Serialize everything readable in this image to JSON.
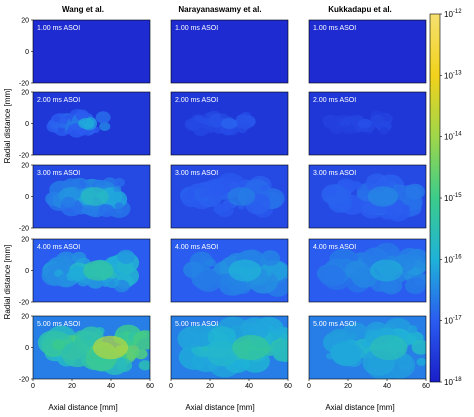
{
  "chart_data": {
    "type": "heatmap",
    "columns": [
      "Wang et al.",
      "Narayanaswamy et al.",
      "Kukkadapu et al."
    ],
    "rows": [
      "1.00 ms ASOI",
      "2.00 ms ASOI",
      "3.00 ms ASOI",
      "4.00 ms ASOI",
      "5.00 ms ASOI"
    ],
    "xlabel": "Axial distance [mm]",
    "ylabel": "Radial distance [mm]",
    "xlim": [
      0,
      60
    ],
    "ylim": [
      -20,
      20
    ],
    "x_ticks": [
      "0",
      "20",
      "40",
      "60"
    ],
    "y_ticks": [
      "20",
      "0",
      "-20"
    ],
    "colorbar": {
      "scale": "log",
      "min_exponent": -18,
      "max_exponent": -12,
      "ticks": [
        {
          "base": "10",
          "exp": "-12",
          "value": -12
        },
        {
          "base": "10",
          "exp": "-13",
          "value": -13
        },
        {
          "base": "10",
          "exp": "-14",
          "value": -14
        },
        {
          "base": "10",
          "exp": "-15",
          "value": -15
        },
        {
          "base": "10",
          "exp": "-16",
          "value": -16
        },
        {
          "base": "10",
          "exp": "-17",
          "value": -17
        },
        {
          "base": "10",
          "exp": "-18",
          "value": -18
        }
      ],
      "colors": [
        "#1a1fc8",
        "#2a5cf0",
        "#1fb2d8",
        "#3ccc8a",
        "#9fd64a",
        "#f2d21c",
        "#f5e070"
      ]
    },
    "panels": [
      {
        "row": 0,
        "col": 0,
        "background": -17.8,
        "x_reach": 0,
        "width": 0,
        "peak": -17.8
      },
      {
        "row": 0,
        "col": 1,
        "background": -17.8,
        "x_reach": 0,
        "width": 0,
        "peak": -17.8
      },
      {
        "row": 0,
        "col": 2,
        "background": -17.8,
        "x_reach": 0,
        "width": 0,
        "peak": -17.8
      },
      {
        "row": 1,
        "col": 0,
        "background": -17.6,
        "x_reach": 38,
        "width": 7,
        "peak": -16.0
      },
      {
        "row": 1,
        "col": 1,
        "background": -17.6,
        "x_reach": 42,
        "width": 7,
        "peak": -16.9
      },
      {
        "row": 1,
        "col": 2,
        "background": -17.6,
        "x_reach": 40,
        "width": 6,
        "peak": -17.2
      },
      {
        "row": 2,
        "col": 0,
        "background": -17.3,
        "x_reach": 45,
        "width": 12,
        "peak": -15.7
      },
      {
        "row": 2,
        "col": 1,
        "background": -17.3,
        "x_reach": 52,
        "width": 12,
        "peak": -16.6
      },
      {
        "row": 2,
        "col": 2,
        "background": -17.3,
        "x_reach": 55,
        "width": 13,
        "peak": -16.5
      },
      {
        "row": 3,
        "col": 0,
        "background": -17.0,
        "x_reach": 48,
        "width": 13,
        "peak": -15.3
      },
      {
        "row": 3,
        "col": 1,
        "background": -17.0,
        "x_reach": 55,
        "width": 14,
        "peak": -16.0
      },
      {
        "row": 3,
        "col": 2,
        "background": -17.0,
        "x_reach": 58,
        "width": 14,
        "peak": -16.1
      },
      {
        "row": 4,
        "col": 0,
        "background": -16.6,
        "x_reach": 58,
        "width": 15,
        "peak": -13.8
      },
      {
        "row": 4,
        "col": 1,
        "background": -16.6,
        "x_reach": 60,
        "width": 16,
        "peak": -15.2
      },
      {
        "row": 4,
        "col": 2,
        "background": -16.6,
        "x_reach": 60,
        "width": 16,
        "peak": -15.6
      }
    ]
  }
}
